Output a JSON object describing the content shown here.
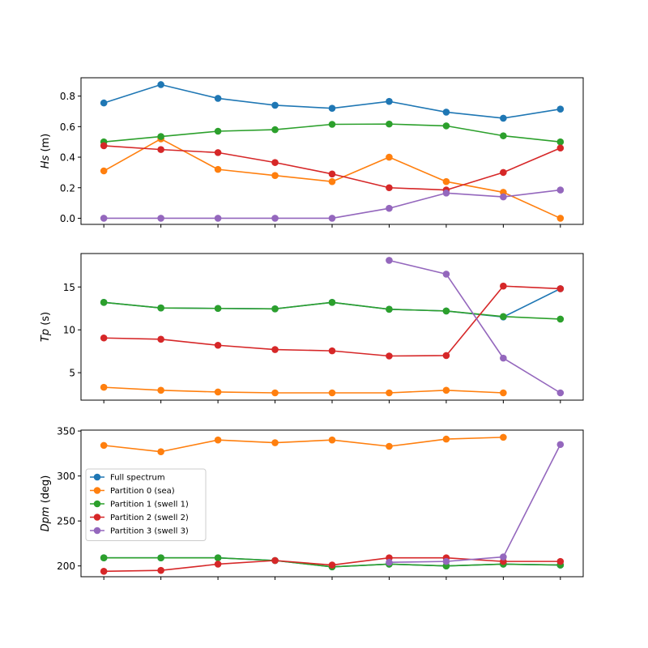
{
  "chart_data": {
    "type": "line",
    "layout": "3 vertically stacked subplots sharing x",
    "x": [
      0,
      1,
      2,
      3,
      4,
      5,
      6,
      7,
      8
    ],
    "legend": {
      "location": "center-left of bottom panel",
      "entries": [
        "Full spectrum",
        "Partition 0 (sea)",
        "Partition 1 (swell 1)",
        "Partition 2 (swell 2)",
        "Partition 3 (swell 3)"
      ]
    },
    "colors": {
      "Full spectrum": "#1f77b4",
      "Partition 0 (sea)": "#ff7f0e",
      "Partition 1 (swell 1)": "#2ca02c",
      "Partition 2 (swell 2)": "#d62728",
      "Partition 3 (swell 3)": "#9467bd"
    },
    "panels": [
      {
        "ylabel_italic": "Hs",
        "ylabel_unit": " (m)",
        "ylim": [
          -0.04,
          0.92
        ],
        "yticks": [
          0.0,
          0.2,
          0.4,
          0.6,
          0.8
        ],
        "ytick_labels": [
          "0.0",
          "0.2",
          "0.4",
          "0.6",
          "0.8"
        ],
        "grid": false,
        "series": [
          {
            "name": "Full spectrum",
            "values": [
              0.755,
              0.875,
              0.785,
              0.74,
              0.72,
              0.765,
              0.695,
              0.655,
              0.715
            ]
          },
          {
            "name": "Partition 0 (sea)",
            "values": [
              0.31,
              0.52,
              0.32,
              0.28,
              0.24,
              0.4,
              0.24,
              0.17,
              0.0
            ]
          },
          {
            "name": "Partition 1 (swell 1)",
            "values": [
              0.5,
              0.535,
              0.57,
              0.58,
              0.615,
              0.617,
              0.605,
              0.54,
              0.5
            ]
          },
          {
            "name": "Partition 2 (swell 2)",
            "values": [
              0.475,
              0.45,
              0.43,
              0.365,
              0.29,
              0.2,
              0.185,
              0.3,
              0.46
            ]
          },
          {
            "name": "Partition 3 (swell 3)",
            "values": [
              0.0,
              0.0,
              0.0,
              0.0,
              0.0,
              0.065,
              0.165,
              0.14,
              0.185
            ]
          }
        ]
      },
      {
        "ylabel_italic": "Tp",
        "ylabel_unit": " (s)",
        "ylim": [
          1.8,
          18.9
        ],
        "yticks": [
          5,
          10,
          15
        ],
        "ytick_labels": [
          "5",
          "10",
          "15"
        ],
        "grid": false,
        "series": [
          {
            "name": "Full spectrum",
            "values": [
              13.2,
              12.55,
              12.5,
              12.45,
              13.2,
              12.4,
              12.2,
              11.5,
              14.8
            ]
          },
          {
            "name": "Partition 0 (sea)",
            "values": [
              3.3,
              2.95,
              2.75,
              2.65,
              2.65,
              2.65,
              2.95,
              2.65,
              null
            ]
          },
          {
            "name": "Partition 1 (swell 1)",
            "values": [
              13.2,
              12.55,
              12.5,
              12.45,
              13.2,
              12.4,
              12.2,
              11.55,
              11.25
            ]
          },
          {
            "name": "Partition 2 (swell 2)",
            "values": [
              9.05,
              8.9,
              8.2,
              7.7,
              7.55,
              6.95,
              7.0,
              15.1,
              14.8
            ]
          },
          {
            "name": "Partition 3 (swell 3)",
            "values": [
              null,
              null,
              null,
              null,
              null,
              18.1,
              16.5,
              6.7,
              2.65
            ]
          }
        ]
      },
      {
        "ylabel_italic": "Dpm",
        "ylabel_unit": " (deg)",
        "ylim": [
          188,
          351
        ],
        "yticks": [
          200,
          250,
          300,
          350
        ],
        "ytick_labels": [
          "200",
          "250",
          "300",
          "350"
        ],
        "grid": false,
        "series": [
          {
            "name": "Full spectrum",
            "values": [
              209,
              209,
              209,
              206,
              199,
              202,
              200,
              202,
              201
            ]
          },
          {
            "name": "Partition 0 (sea)",
            "values": [
              334,
              327,
              340,
              337,
              340,
              333,
              341,
              343,
              null
            ]
          },
          {
            "name": "Partition 1 (swell 1)",
            "values": [
              209,
              209,
              209,
              206,
              199,
              202,
              200,
              202,
              201
            ]
          },
          {
            "name": "Partition 2 (swell 2)",
            "values": [
              194,
              195,
              202,
              206,
              201,
              209,
              209,
              205,
              205
            ]
          },
          {
            "name": "Partition 3 (swell 3)",
            "values": [
              null,
              null,
              null,
              null,
              null,
              204,
              205,
              210,
              335
            ]
          }
        ]
      }
    ]
  }
}
